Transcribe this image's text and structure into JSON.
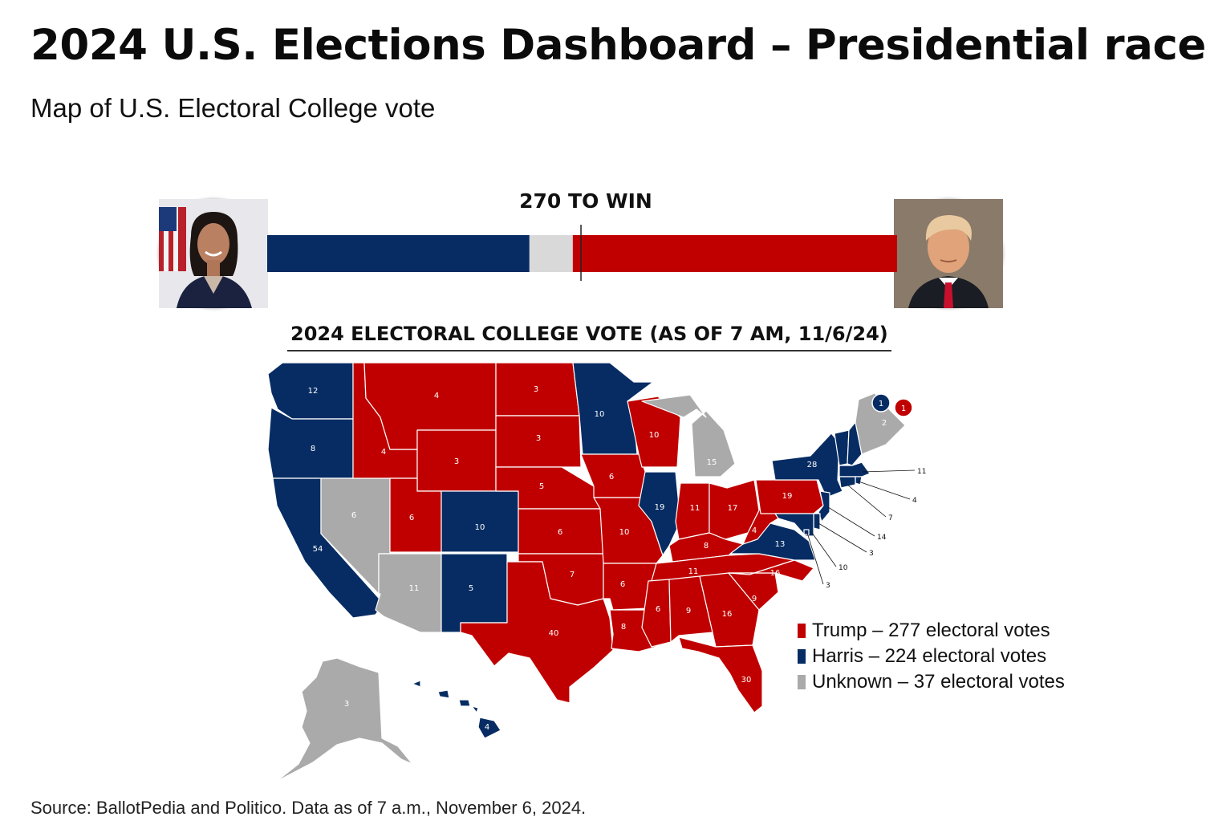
{
  "header": {
    "title": "2024 U.S. Elections Dashboard – Presidential race",
    "subtitle": "Map of U.S. Electoral College vote"
  },
  "race_bar": {
    "threshold_label": "270 TO WIN",
    "threshold": 270,
    "total": 538,
    "harris": 224,
    "unknown": 37,
    "trump": 277
  },
  "colors": {
    "trump": "#c00000",
    "harris": "#062c63",
    "unknown": "#aaaaaa",
    "unknown_bar": "#d9d9d9"
  },
  "map": {
    "title": "2024 ELECTORAL COLLEGE VOTE (AS OF 7 AM, 11/6/24)",
    "maine_districts": [
      {
        "party": "harris",
        "votes": "1"
      },
      {
        "party": "trump",
        "votes": "1"
      }
    ],
    "states": [
      {
        "id": "WA",
        "party": "harris",
        "votes": "12"
      },
      {
        "id": "OR",
        "party": "harris",
        "votes": "8"
      },
      {
        "id": "CA",
        "party": "harris",
        "votes": "54"
      },
      {
        "id": "NV",
        "party": "unknown",
        "votes": "6"
      },
      {
        "id": "ID",
        "party": "trump",
        "votes": "4"
      },
      {
        "id": "MT",
        "party": "trump",
        "votes": "4"
      },
      {
        "id": "WY",
        "party": "trump",
        "votes": "3"
      },
      {
        "id": "UT",
        "party": "trump",
        "votes": "6"
      },
      {
        "id": "AZ",
        "party": "unknown",
        "votes": "11"
      },
      {
        "id": "CO",
        "party": "harris",
        "votes": "10"
      },
      {
        "id": "NM",
        "party": "harris",
        "votes": "5"
      },
      {
        "id": "ND",
        "party": "trump",
        "votes": "3"
      },
      {
        "id": "SD",
        "party": "trump",
        "votes": "3"
      },
      {
        "id": "NE",
        "party": "trump",
        "votes": "5"
      },
      {
        "id": "KS",
        "party": "trump",
        "votes": "6"
      },
      {
        "id": "OK",
        "party": "trump",
        "votes": "7"
      },
      {
        "id": "TX",
        "party": "trump",
        "votes": "40"
      },
      {
        "id": "MN",
        "party": "harris",
        "votes": "10"
      },
      {
        "id": "IA",
        "party": "trump",
        "votes": "6"
      },
      {
        "id": "MO",
        "party": "trump",
        "votes": "10"
      },
      {
        "id": "AR",
        "party": "trump",
        "votes": "6"
      },
      {
        "id": "LA",
        "party": "trump",
        "votes": "8"
      },
      {
        "id": "WI",
        "party": "trump",
        "votes": "10"
      },
      {
        "id": "IL",
        "party": "harris",
        "votes": "19"
      },
      {
        "id": "MI",
        "party": "unknown",
        "votes": "15"
      },
      {
        "id": "IN",
        "party": "trump",
        "votes": "11"
      },
      {
        "id": "OH",
        "party": "trump",
        "votes": "17"
      },
      {
        "id": "KY",
        "party": "trump",
        "votes": "8"
      },
      {
        "id": "TN",
        "party": "trump",
        "votes": "11"
      },
      {
        "id": "MS",
        "party": "trump",
        "votes": "6"
      },
      {
        "id": "AL",
        "party": "trump",
        "votes": "9"
      },
      {
        "id": "GA",
        "party": "trump",
        "votes": "16"
      },
      {
        "id": "FL",
        "party": "trump",
        "votes": "30"
      },
      {
        "id": "SC",
        "party": "trump",
        "votes": "9"
      },
      {
        "id": "NC",
        "party": "trump",
        "votes": "16"
      },
      {
        "id": "VA",
        "party": "harris",
        "votes": "13"
      },
      {
        "id": "WV",
        "party": "trump",
        "votes": "4"
      },
      {
        "id": "PA",
        "party": "trump",
        "votes": "19"
      },
      {
        "id": "NY",
        "party": "harris",
        "votes": "28"
      },
      {
        "id": "VT",
        "party": "harris",
        "votes": "3"
      },
      {
        "id": "NH",
        "party": "harris",
        "votes": "4"
      },
      {
        "id": "ME",
        "party": "unknown",
        "votes": "2"
      },
      {
        "id": "MA",
        "party": "harris",
        "votes": "11"
      },
      {
        "id": "RI",
        "party": "harris",
        "votes": "4"
      },
      {
        "id": "CT",
        "party": "harris",
        "votes": "7"
      },
      {
        "id": "NJ",
        "party": "harris",
        "votes": "14"
      },
      {
        "id": "DE",
        "party": "harris",
        "votes": "3"
      },
      {
        "id": "MD",
        "party": "harris",
        "votes": "10"
      },
      {
        "id": "DC",
        "party": "harris",
        "votes": "3"
      },
      {
        "id": "AK",
        "party": "unknown",
        "votes": "3"
      },
      {
        "id": "HI",
        "party": "harris",
        "votes": "4"
      }
    ]
  },
  "legend": [
    {
      "party": "trump",
      "label": "Trump – 277 electoral votes"
    },
    {
      "party": "harris",
      "label": "Harris – 224 electoral votes"
    },
    {
      "party": "unknown",
      "label": "Unknown – 37 electoral votes"
    }
  ],
  "footer": {
    "source": "Source: BallotPedia and Politico. Data as of 7 a.m., November 6, 2024."
  }
}
